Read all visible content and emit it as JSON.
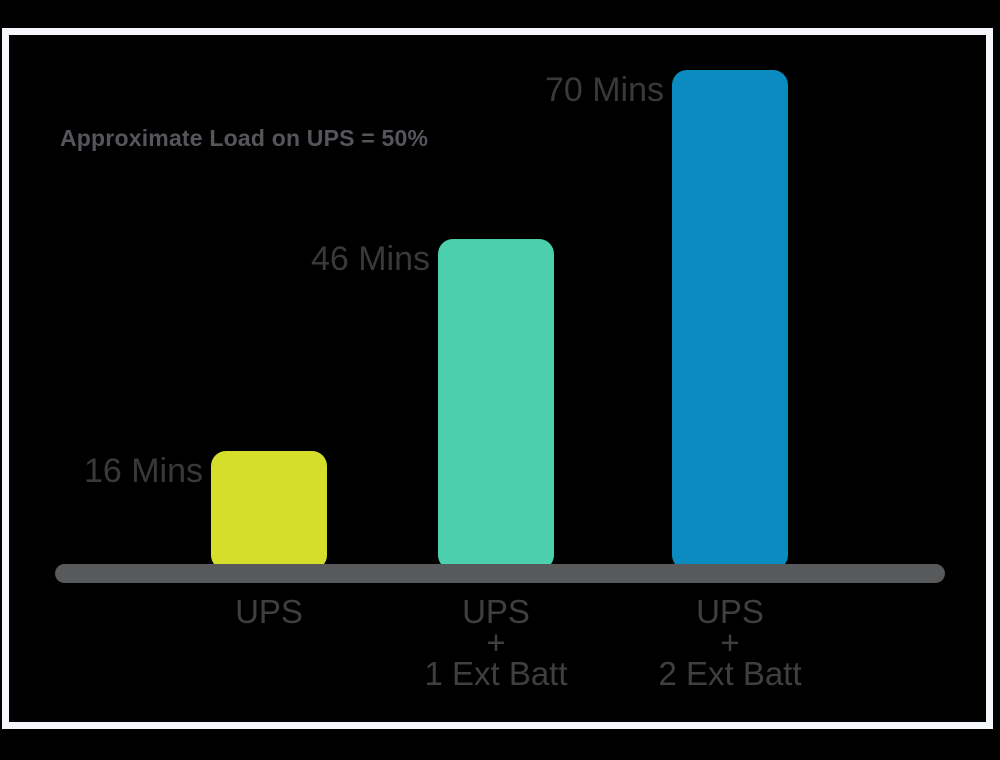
{
  "frame": {
    "border_color": "#F5F6FA",
    "background": "#000000"
  },
  "chart_data": {
    "type": "bar",
    "title": "Approximate Load on UPS = 50%",
    "title_color": "#54565B",
    "categories": [
      [
        "UPS"
      ],
      [
        "UPS",
        "+",
        "1 Ext Batt"
      ],
      [
        "UPS",
        "+",
        "2 Ext Batt"
      ]
    ],
    "values": [
      16,
      46,
      70
    ],
    "value_labels": [
      "16 Mins",
      "46 Mins",
      "70 Mins"
    ],
    "unit": "minutes",
    "xlabel": "",
    "ylabel": "",
    "ylim": [
      0,
      70
    ],
    "grid": false,
    "legend": false,
    "bar_colors": [
      "#D5DF2B",
      "#4BCFAD",
      "#0A8CC1"
    ],
    "baseline_color": "#58595B",
    "value_label_color": "#38393B",
    "axis_label_color": "#3E3F41"
  }
}
